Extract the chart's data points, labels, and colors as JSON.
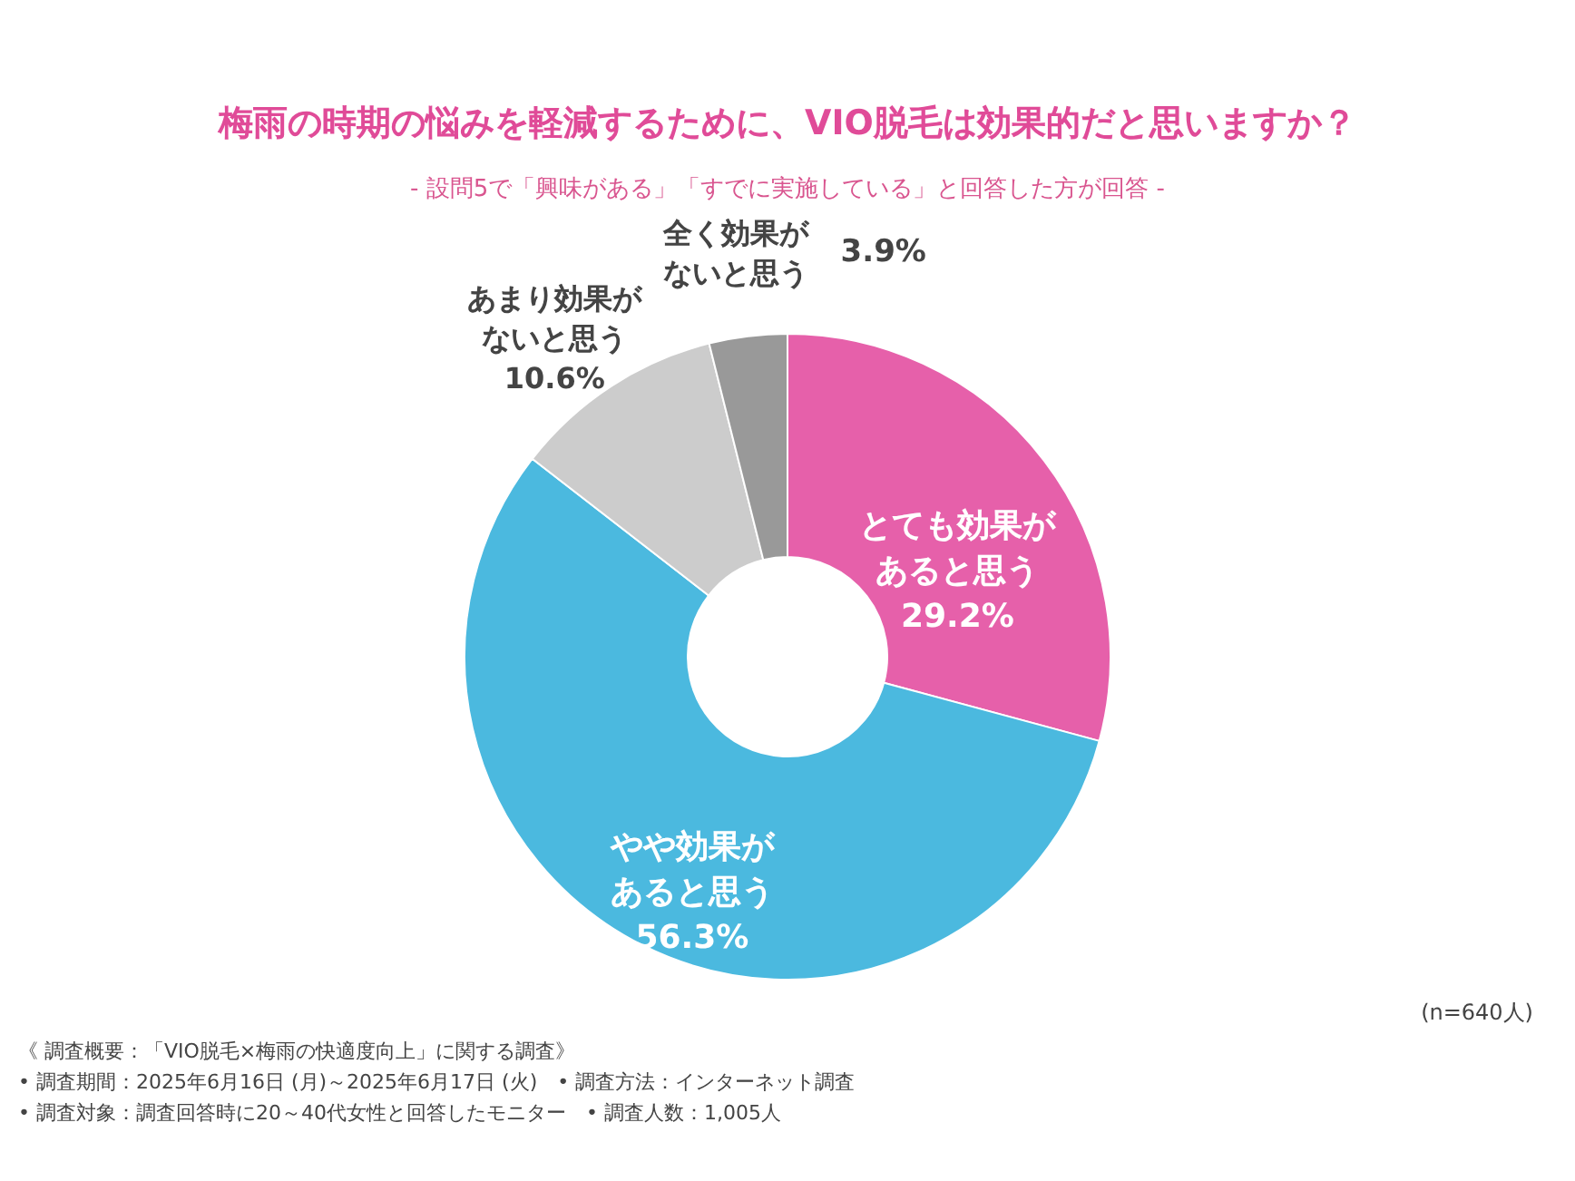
{
  "chart_data": {
    "type": "donut",
    "title": "梅雨の時期の悩みを軽減するために、VIO脱毛は効果的だと思いますか？",
    "subtitle": "- 設問5で「興味がある」「すでに実施している」と回答した方が回答 -",
    "categories": [
      "とても効果があると思う",
      "やや効果があると思う",
      "あまり効果がないと思う",
      "全く効果がないと思う"
    ],
    "values": [
      29.2,
      56.3,
      10.6,
      3.9
    ],
    "value_labels": [
      "29.2%",
      "56.3%",
      "10.6%",
      "3.9%"
    ],
    "colors": [
      "#e660aa",
      "#4bb9df",
      "#cccccc",
      "#999999"
    ],
    "annotations": [
      "(n=640人)",
      "《 調査概要：「VIO脱毛×梅雨の快適度向上」に関する調査》",
      "• 調査期間：2025年6月16日 (月)～2025年6月17日 (火)　• 調査方法：インターネット調査",
      "• 調査対象：調査回答時に20～40代女性と回答したモニター　• 調査人数：1,005人"
    ]
  }
}
